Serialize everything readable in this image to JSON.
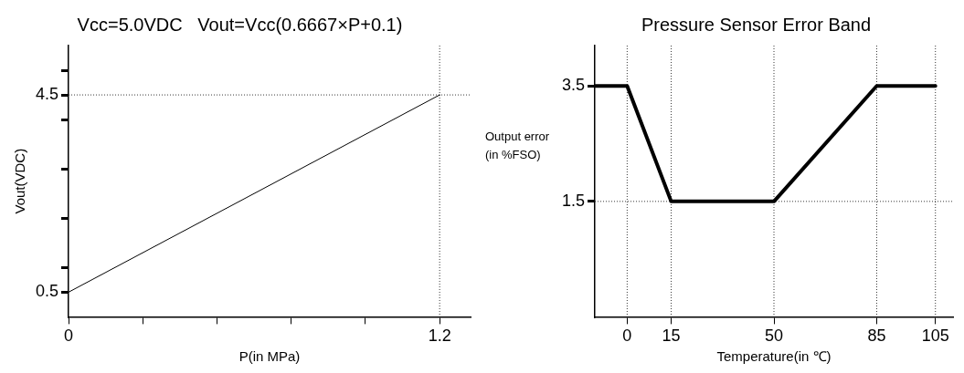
{
  "chart_data": [
    {
      "type": "line",
      "title": "Vcc=5.0VDC   Vout=Vcc(0.6667×P+0.1)",
      "xlabel": "P(in MPa)",
      "ylabel": "Vout(VDC)",
      "x": [
        0,
        1.2
      ],
      "series": [
        {
          "color": "#000000",
          "values": [
            0.5,
            4.5
          ]
        }
      ],
      "xlim": [
        0,
        1.3
      ],
      "xticks": [
        0,
        {
          "value": 0.24,
          "label": null
        },
        {
          "value": 0.48,
          "label": null
        },
        {
          "value": 0.72,
          "label": null
        },
        {
          "value": 0.96,
          "label": null
        },
        1.2
      ],
      "ylim": [
        0,
        5.5
      ],
      "yticks": [
        0.5,
        {
          "value": 1,
          "label": null
        },
        {
          "value": 2,
          "label": null
        },
        {
          "value": 3,
          "label": null
        },
        {
          "value": 4,
          "label": null
        },
        4.5,
        {
          "value": 5,
          "label": null
        }
      ],
      "ref_lines": [
        {
          "axis": "y",
          "value": 4.5,
          "line_style": "dotted"
        },
        {
          "axis": "x",
          "value": 1.2,
          "line_style": "dotted"
        }
      ],
      "grid": false,
      "legend": false,
      "marker": "none",
      "line_style": "solid"
    },
    {
      "type": "line",
      "title": "Pressure Sensor Error Band",
      "xlabel": "Temperature(in ℃)",
      "ylabel": "Output error (in %FSO)",
      "x": [
        -11,
        0,
        15,
        50,
        85,
        105
      ],
      "series": [
        {
          "color": "#000000",
          "values": [
            3.5,
            3.5,
            1.5,
            1.5,
            3.5,
            3.5
          ]
        }
      ],
      "xlim": [
        -11,
        111
      ],
      "xticks": [
        0,
        15,
        50,
        85,
        105
      ],
      "ylim": [
        -0.5,
        4.2
      ],
      "yticks": [
        1.5,
        3.5
      ],
      "ref_lines": [
        {
          "axis": "y",
          "value": 1.5,
          "line_style": "dotted"
        },
        {
          "axis": "x",
          "value": 0,
          "line_style": "dotted"
        },
        {
          "axis": "x",
          "value": 15,
          "line_style": "dotted"
        },
        {
          "axis": "x",
          "value": 50,
          "line_style": "dotted"
        },
        {
          "axis": "x",
          "value": 85,
          "line_style": "dotted"
        },
        {
          "axis": "x",
          "value": 105,
          "line_style": "dotted"
        }
      ],
      "grid": false,
      "legend": false,
      "marker": "none",
      "line_style": "solid"
    }
  ]
}
